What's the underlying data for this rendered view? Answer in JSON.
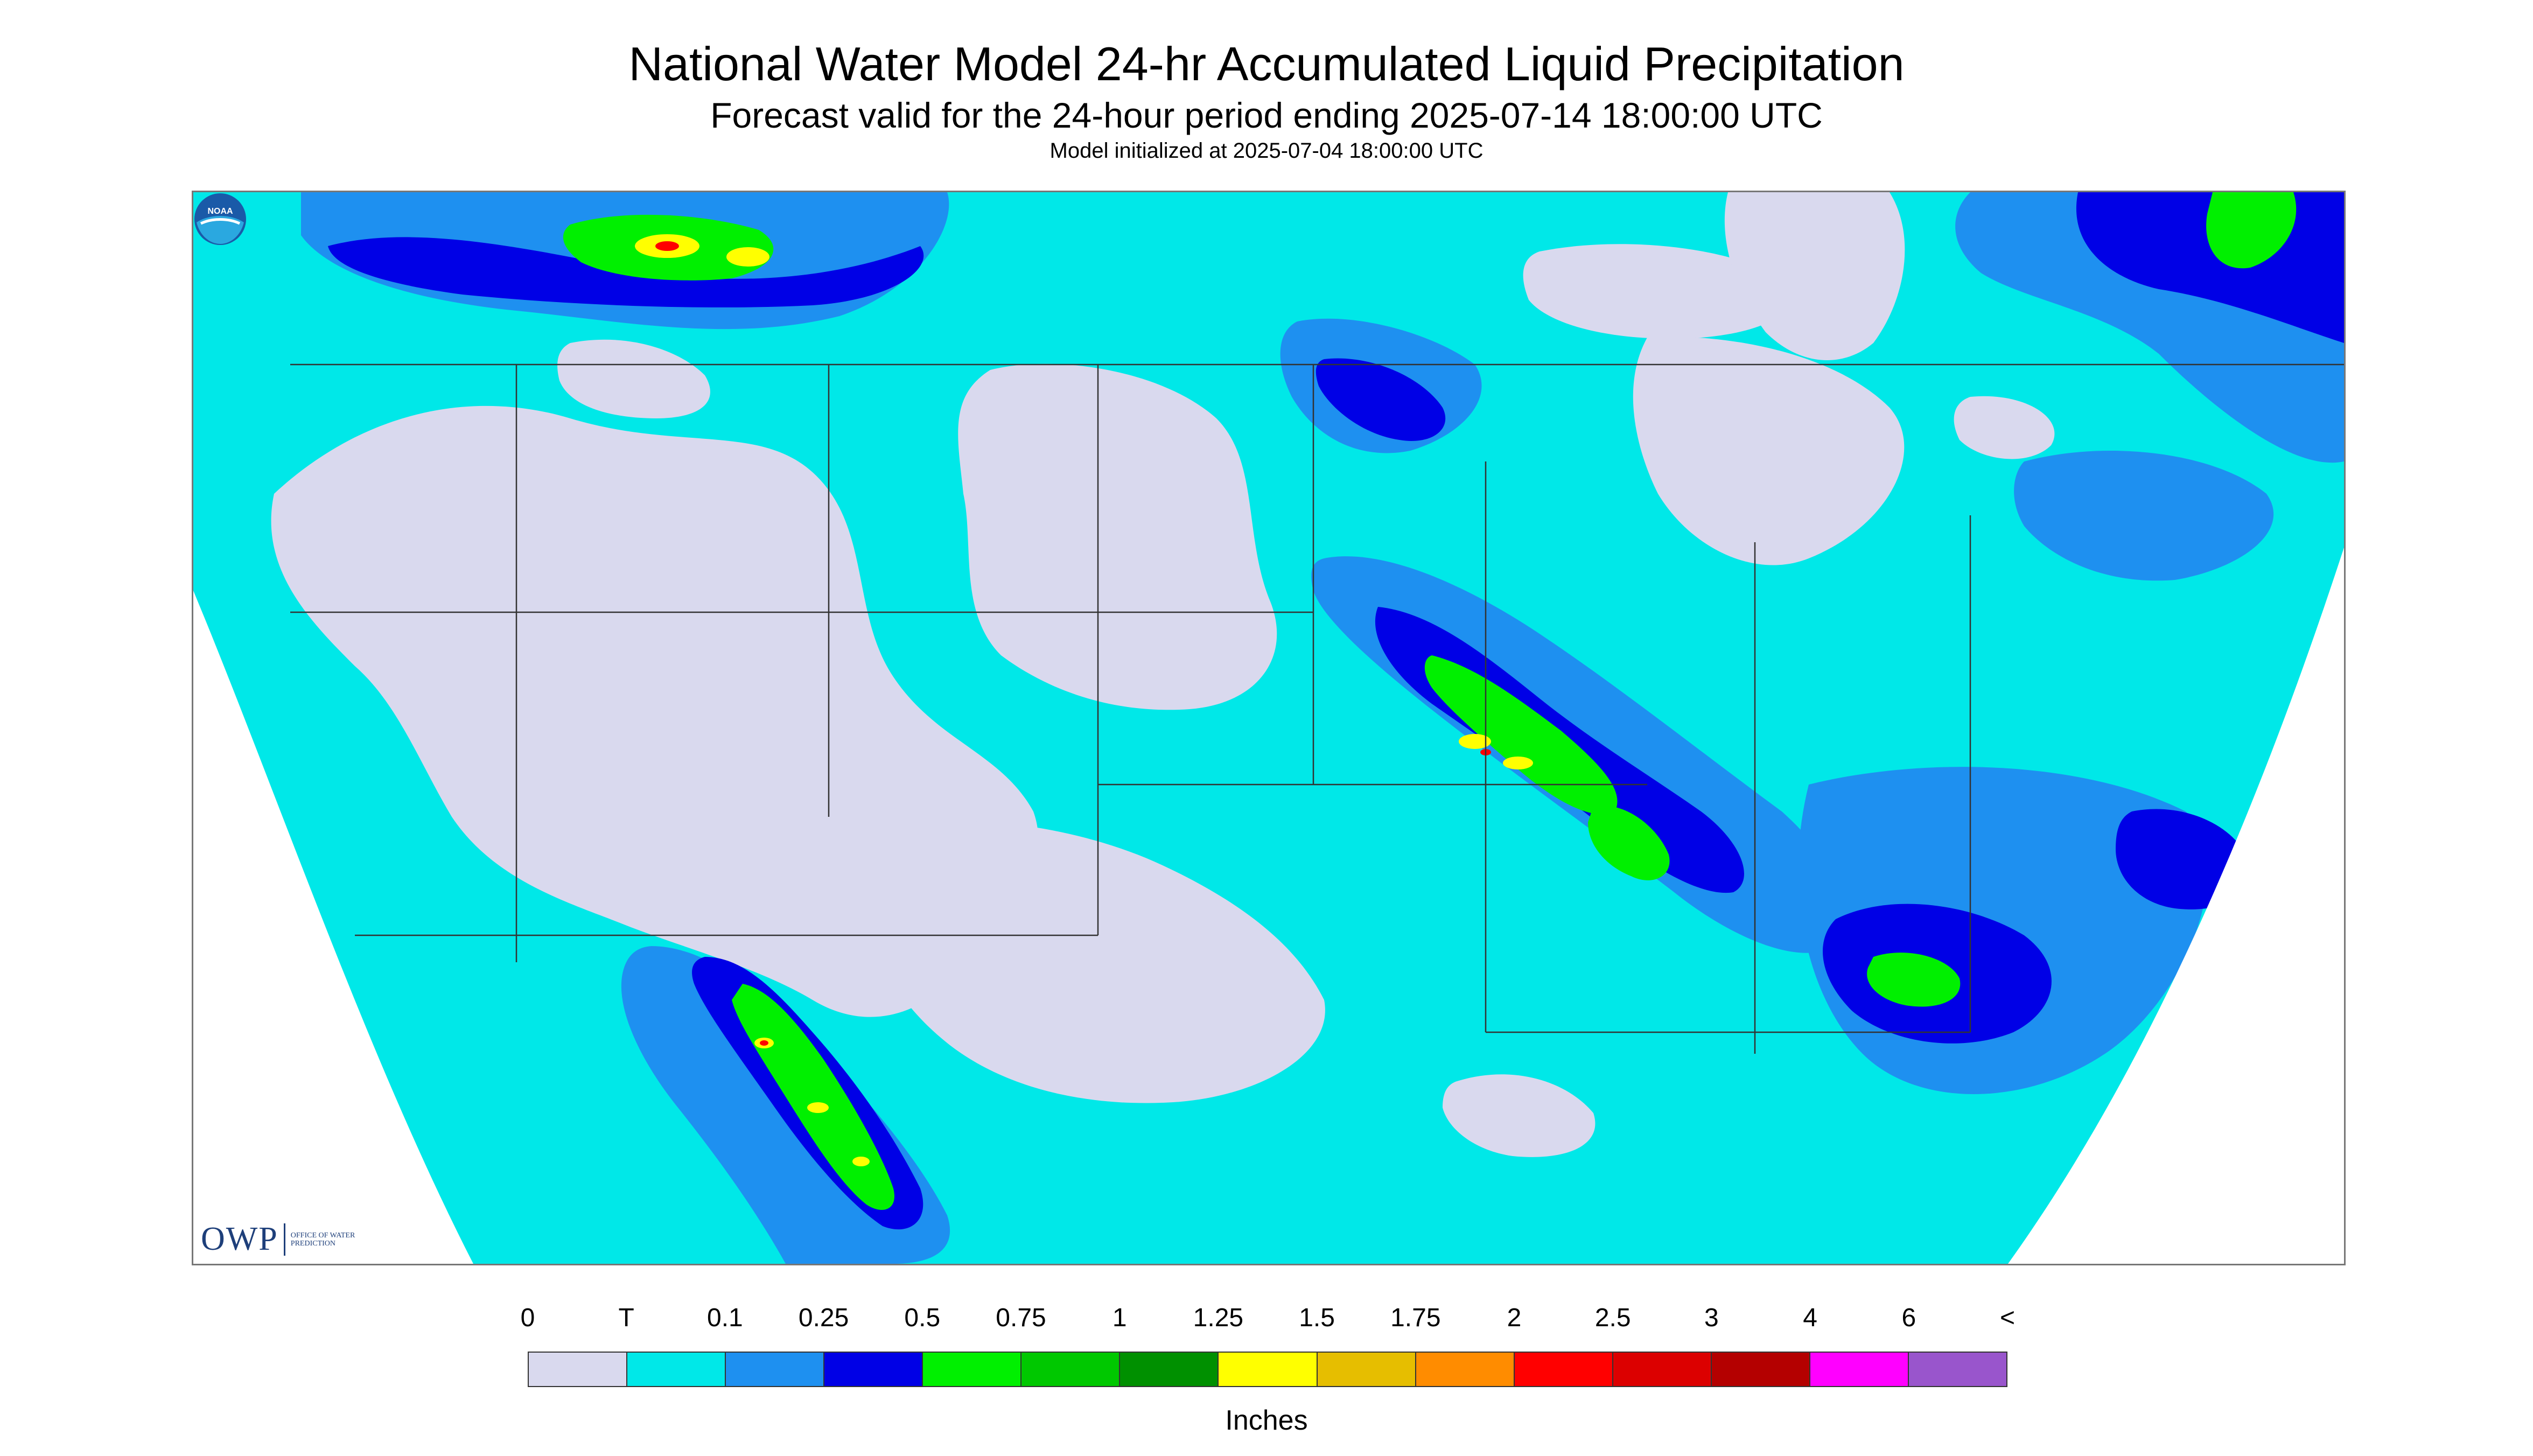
{
  "header": {
    "title": "National Water Model 24-hr Accumulated Liquid Precipitation",
    "subtitle": "Forecast valid for the 24-hour period ending 2025-07-14 18:00:00 UTC",
    "init": "Model initialized at 2025-07-04 18:00:00 UTC"
  },
  "logo": {
    "owp_text": "OWP",
    "owp_subtext": "OFFICE OF WATER PREDICTION",
    "noaa_text": "NOAA"
  },
  "legend": {
    "labels": [
      "0",
      "T",
      "0.1",
      "0.25",
      "0.5",
      "0.75",
      "1",
      "1.25",
      "1.5",
      "1.75",
      "2",
      "2.5",
      "3",
      "4",
      "6",
      "<"
    ],
    "colors": [
      "#d9d9ee",
      "#00e8e8",
      "#1e90f0",
      "#0000e6",
      "#00f000",
      "#00c800",
      "#009000",
      "#ffff00",
      "#e6be00",
      "#ff8c00",
      "#ff0000",
      "#dc0000",
      "#b40000",
      "#ff00ff",
      "#9955cc"
    ],
    "units": "Inches"
  },
  "map_colors": {
    "no_precip": "#d9d9ee",
    "trace": "#00e8e8",
    "light": "#1e90f0",
    "moderate": "#0000e6",
    "heavy": "#00f000",
    "very_heavy": "#009000",
    "extreme": "#ffff00",
    "extreme2": "#ff0000",
    "outside_domain": "#ffffff"
  }
}
